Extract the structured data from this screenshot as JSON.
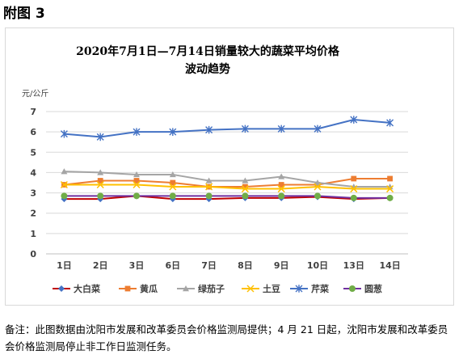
{
  "page": {
    "heading": "附图 3",
    "note": "备注：此图数据由沈阳市发展和改革委员会价格监测局提供；4 月 21 日起，沈阳市发展和改革委员会价格监测局停止非工作日监测任务。"
  },
  "chart_data": {
    "type": "line",
    "title_line1": "2020年7月1日—7月14日销量较大的蔬菜平均价格",
    "title_line2": "波动趋势",
    "ylabel": "元/公斤",
    "xlabel": "",
    "ylim": [
      0,
      7
    ],
    "yticks": [
      0,
      1,
      2,
      3,
      4,
      5,
      6,
      7
    ],
    "grid": true,
    "legend_position": "bottom",
    "categories": [
      "1日",
      "2日",
      "3日",
      "6日",
      "7日",
      "8日",
      "9日",
      "10日",
      "13日",
      "14日"
    ],
    "series": [
      {
        "name": "大白菜",
        "color": "#c00000",
        "marker": "diamond",
        "marker_color": "#4472c4",
        "values": [
          2.7,
          2.7,
          2.85,
          2.7,
          2.7,
          2.75,
          2.75,
          2.8,
          2.7,
          2.75
        ]
      },
      {
        "name": "黄瓜",
        "color": "#ed7d31",
        "marker": "square",
        "values": [
          3.4,
          3.6,
          3.6,
          3.5,
          3.3,
          3.3,
          3.4,
          3.4,
          3.7,
          3.7
        ]
      },
      {
        "name": "绿茄子",
        "color": "#a5a5a5",
        "marker": "triangle",
        "values": [
          4.05,
          4.0,
          3.9,
          3.9,
          3.6,
          3.6,
          3.8,
          3.5,
          3.3,
          3.3
        ]
      },
      {
        "name": "土豆",
        "color": "#ffc000",
        "marker": "x",
        "values": [
          3.4,
          3.4,
          3.4,
          3.3,
          3.3,
          3.2,
          3.2,
          3.3,
          3.2,
          3.2
        ]
      },
      {
        "name": "芹菜",
        "color": "#4472c4",
        "marker": "star",
        "values": [
          5.9,
          5.75,
          6.0,
          6.0,
          6.1,
          6.15,
          6.15,
          6.15,
          6.6,
          6.45
        ]
      },
      {
        "name": "圆葱",
        "color": "#7030a0",
        "marker": "circle",
        "marker_color": "#70ad47",
        "values": [
          2.85,
          2.85,
          2.85,
          2.85,
          2.85,
          2.85,
          2.85,
          2.85,
          2.75,
          2.75
        ]
      }
    ]
  }
}
